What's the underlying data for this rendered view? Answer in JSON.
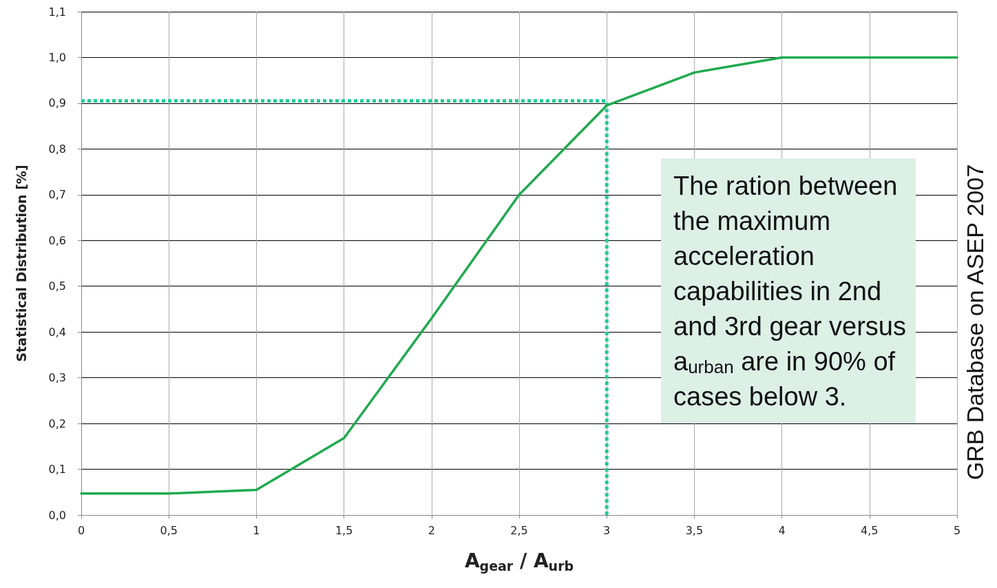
{
  "chart_data": {
    "type": "line",
    "xlabel": "A$_{gear}$ / A$_{urb}$",
    "ylabel": "Statistical Distribution [%]",
    "x": [
      0,
      0.5,
      1,
      1.5,
      2,
      2.5,
      3,
      3.5,
      4,
      5
    ],
    "series": [
      {
        "color": "#1faa4f",
        "values": [
          0.047,
          0.047,
          0.055,
          0.168,
          0.43,
          0.7,
          0.895,
          0.967,
          1.0,
          1.0
        ]
      }
    ],
    "xlim": [
      0,
      5
    ],
    "xticks": [
      0,
      {
        "value": 0.5,
        "label": "0,5"
      },
      1,
      {
        "value": 1.5,
        "label": "1,5"
      },
      2,
      {
        "value": 2.5,
        "label": "2,5"
      },
      3,
      {
        "value": 3.5,
        "label": "3,5"
      },
      4,
      {
        "value": 4.5,
        "label": "4,5"
      },
      5
    ],
    "ylim": [
      0,
      1.1
    ],
    "yticks": [
      {
        "value": 0,
        "label": "0,0"
      },
      {
        "value": 0.1,
        "label": "0,1"
      },
      {
        "value": 0.2,
        "label": "0,2"
      },
      {
        "value": 0.3,
        "label": "0,3"
      },
      {
        "value": 0.4,
        "label": "0,4"
      },
      {
        "value": 0.5,
        "label": "0,5"
      },
      {
        "value": 0.6,
        "label": "0,6"
      },
      {
        "value": 0.7,
        "label": "0,7"
      },
      {
        "value": 0.8,
        "label": "0,8"
      },
      {
        "value": 0.9,
        "label": "0,9"
      },
      {
        "value": 1.0,
        "label": "1,0"
      },
      {
        "value": 1.1,
        "label": "1,1"
      }
    ],
    "ref_lines": [
      {
        "axis": "y",
        "value": 0.905,
        "color": "#22cc99",
        "line_style": "dotted"
      },
      {
        "axis": "x",
        "value": 3,
        "color": "#22cc99",
        "line_style": "dotted"
      }
    ],
    "annotations": [
      "The ration between the maximum acceleration capabilities in 2nd and 3rd gear versus a$_{urban}$ are in 90% of cases below 3.",
      "GRB Database on ASEP 2007"
    ],
    "grid": true,
    "marker": "none",
    "line_style": "solid"
  }
}
